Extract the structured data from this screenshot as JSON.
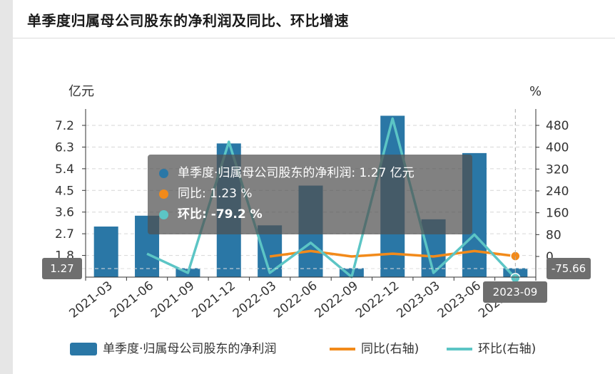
{
  "title": "单季度归属母公司股东的净利润及同比、环比增速",
  "chart_data": {
    "type": "bar",
    "categories": [
      "2021-03",
      "2021-06",
      "2021-09",
      "2021-12",
      "2022-03",
      "2022-06",
      "2022-09",
      "2022-12",
      "2023-03",
      "2023-06",
      "2023-09"
    ],
    "left_unit": "亿元",
    "right_unit": "%",
    "left_ticks": [
      "7.2",
      "6.3",
      "5.4",
      "4.5",
      "3.6",
      "2.7",
      "1.8"
    ],
    "right_ticks": [
      "480",
      "400",
      "320",
      "240",
      "160",
      "80",
      "0"
    ],
    "left_range": [
      0.9,
      7.2
    ],
    "right_range": [
      -75.66,
      480
    ],
    "series": [
      {
        "name": "单季度·归属母公司股东的净利润",
        "kind": "bar",
        "axis": "left",
        "color": "#2a77a6",
        "values": [
          3.0,
          3.45,
          1.27,
          6.45,
          3.05,
          4.7,
          1.27,
          7.6,
          3.3,
          6.05,
          1.27
        ]
      },
      {
        "name": "同比(右轴)",
        "kind": "line",
        "axis": "right",
        "color": "#f28a1a",
        "values": [
          null,
          null,
          null,
          null,
          0,
          20,
          0,
          10,
          0,
          20,
          1.23
        ]
      },
      {
        "name": "环比(右轴)",
        "kind": "line",
        "axis": "right",
        "color": "#5cc5c5",
        "values": [
          null,
          10,
          -60,
          420,
          -60,
          50,
          -75,
          505,
          -60,
          80,
          -79.2
        ]
      }
    ],
    "legend_position": "bottom",
    "grid": true
  },
  "tooltip": {
    "rows": [
      {
        "label": "单季度·归属母公司股东的净利润: 1.27  亿元",
        "color": "#2a77a6"
      },
      {
        "label": "同比: 1.23  %",
        "color": "#f28a1a"
      },
      {
        "label": "环比: -79.2  %",
        "color": "#5cc5c5"
      }
    ]
  },
  "axis_pointer": {
    "left_value": "1.27",
    "right_value": "-75.66",
    "x_value": "2023-09"
  },
  "legend": {
    "items": [
      {
        "label": "单季度·归属母公司股东的净利润"
      },
      {
        "label": "同比(右轴)"
      },
      {
        "label": "环比(右轴)"
      }
    ]
  }
}
